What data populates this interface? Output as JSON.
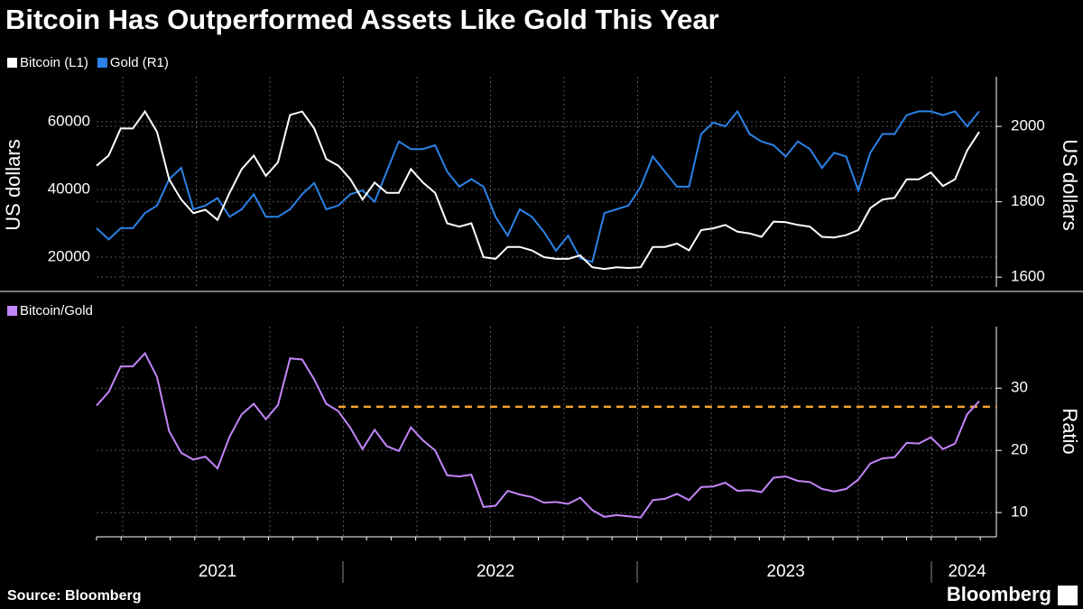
{
  "chart_data": [
    {
      "type": "line",
      "title": "Bitcoin Has Outperformed Assets Like Gold This Year",
      "ylabel": "US dollars",
      "y2label": "US dollars",
      "ylim": [
        11200,
        73300
      ],
      "yticks": [
        20000,
        40000,
        60000
      ],
      "y2lim": [
        1574,
        2132
      ],
      "y2ticks": [
        1600,
        1800,
        2000
      ],
      "grid": true,
      "series": [
        {
          "name": "Bitcoin (L1)",
          "color": "#ffffff",
          "axis": "y",
          "values": [
            47000,
            50000,
            58000,
            58000,
            63000,
            57000,
            43000,
            37000,
            33000,
            34000,
            31000,
            39000,
            46000,
            50000,
            44000,
            48000,
            62000,
            63000,
            58000,
            49000,
            47000,
            43000,
            37000,
            42000,
            39000,
            39000,
            46000,
            42000,
            39000,
            30000,
            29000,
            30000,
            20000,
            19500,
            23000,
            23000,
            22000,
            20000,
            19500,
            19500,
            20500,
            17000,
            16500,
            17000,
            16800,
            17000,
            23000,
            23000,
            24000,
            22000,
            28000,
            28500,
            29500,
            27500,
            27000,
            26000,
            30500,
            30300,
            29500,
            29000,
            26000,
            25800,
            26500,
            28000,
            34500,
            37000,
            37500,
            43000,
            43000,
            45000,
            41000,
            43000,
            51500,
            57000
          ]
        },
        {
          "name": "Gold (R1)",
          "color": "#2b82e6",
          "axis": "y2",
          "values": [
            1730,
            1700,
            1730,
            1730,
            1770,
            1790,
            1860,
            1890,
            1780,
            1790,
            1810,
            1760,
            1780,
            1820,
            1760,
            1760,
            1780,
            1820,
            1850,
            1780,
            1790,
            1820,
            1830,
            1800,
            1880,
            1960,
            1940,
            1940,
            1950,
            1880,
            1840,
            1860,
            1840,
            1760,
            1710,
            1780,
            1760,
            1720,
            1670,
            1710,
            1650,
            1640,
            1770,
            1780,
            1790,
            1840,
            1920,
            1880,
            1840,
            1840,
            1980,
            2010,
            2000,
            2040,
            1980,
            1960,
            1950,
            1920,
            1960,
            1940,
            1890,
            1930,
            1920,
            1830,
            1930,
            1980,
            1980,
            2030,
            2040,
            2040,
            2030,
            2040,
            2000,
            2040
          ]
        }
      ]
    },
    {
      "type": "line",
      "ylabel": "Ratio",
      "ylim": [
        6.1,
        39.9
      ],
      "yticks": [
        10,
        20,
        30
      ],
      "grid": true,
      "reference_line": 27,
      "reference_color": "#f7a531",
      "categories": [
        null,
        null,
        null,
        null,
        null,
        null,
        null,
        null,
        null,
        null,
        "2021",
        null,
        null,
        null,
        null,
        null,
        null,
        null,
        null,
        null,
        null,
        null,
        null,
        null,
        null,
        null,
        null,
        null,
        null,
        null,
        null,
        null,
        null,
        "2022",
        null,
        null,
        null,
        null,
        null,
        null,
        null,
        null,
        null,
        null,
        null,
        null,
        null,
        null,
        null,
        null,
        null,
        null,
        null,
        null,
        null,
        null,
        null,
        "2023",
        null,
        null,
        null,
        null,
        null,
        null,
        null,
        null,
        null,
        null,
        null,
        null,
        null,
        null,
        "2024",
        null
      ],
      "series": [
        {
          "name": "Bitcoin/Gold",
          "color": "#c385fa",
          "values": [
            27.2,
            29.4,
            33.5,
            33.5,
            35.6,
            31.8,
            23.1,
            19.6,
            18.5,
            19.0,
            17.1,
            22.2,
            25.8,
            27.5,
            25.0,
            27.3,
            34.8,
            34.6,
            31.4,
            27.5,
            26.3,
            23.6,
            20.2,
            23.3,
            20.7,
            19.9,
            23.7,
            21.6,
            20.0,
            16.0,
            15.8,
            16.1,
            10.9,
            11.1,
            13.5,
            12.9,
            12.5,
            11.6,
            11.7,
            11.4,
            12.4,
            10.4,
            9.3,
            9.6,
            9.4,
            9.2,
            12.0,
            12.2,
            13.0,
            12.0,
            14.1,
            14.2,
            14.8,
            13.5,
            13.6,
            13.3,
            15.6,
            15.8,
            15.1,
            14.9,
            13.8,
            13.4,
            13.8,
            15.3,
            17.9,
            18.7,
            18.9,
            21.2,
            21.1,
            22.1,
            20.2,
            21.1,
            25.8,
            27.9
          ]
        }
      ]
    }
  ],
  "source": "Source: Bloomberg",
  "logo": "Bloomberg"
}
